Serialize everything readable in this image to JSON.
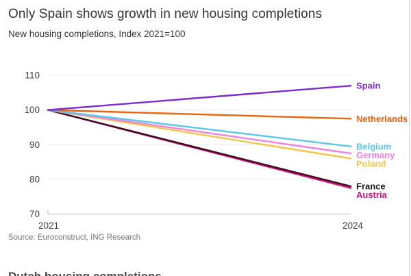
{
  "header": {
    "title": "Only Spain shows growth in new housing completions",
    "subtitle": "New housing completions, Index 2021=100"
  },
  "chart_data": {
    "type": "line",
    "title": "Only Spain shows growth in new housing completions",
    "subtitle": "New housing completions, Index 2021=100",
    "x": [
      2021,
      2024
    ],
    "x_tick_labels": [
      "2021",
      "2024"
    ],
    "ylim": [
      70,
      110
    ],
    "yticks": [
      70,
      80,
      90,
      100,
      110
    ],
    "grid": "horizontal",
    "legend_position": "labels-right-of-line-ends",
    "series": [
      {
        "name": "Spain",
        "values": [
          100,
          107
        ],
        "color": "#7B2BD1"
      },
      {
        "name": "Netherlands",
        "values": [
          100,
          97.5
        ],
        "color": "#EB6209"
      },
      {
        "name": "Belgium",
        "values": [
          100,
          89.5
        ],
        "color": "#5BC6EA"
      },
      {
        "name": "Germany",
        "values": [
          100,
          87.5
        ],
        "color": "#EF82DE"
      },
      {
        "name": "Poland",
        "values": [
          100,
          86
        ],
        "color": "#F5C544"
      },
      {
        "name": "France",
        "values": [
          100,
          78
        ],
        "color": "#3E0A1E",
        "label_color": "#1a1a1a"
      },
      {
        "name": "Austria",
        "values": [
          100,
          77.5
        ],
        "color": "#D2127B"
      }
    ]
  },
  "source": "Source: Euroconstruct, ING Research",
  "bottom_partial_text": "Dutch housing completions"
}
